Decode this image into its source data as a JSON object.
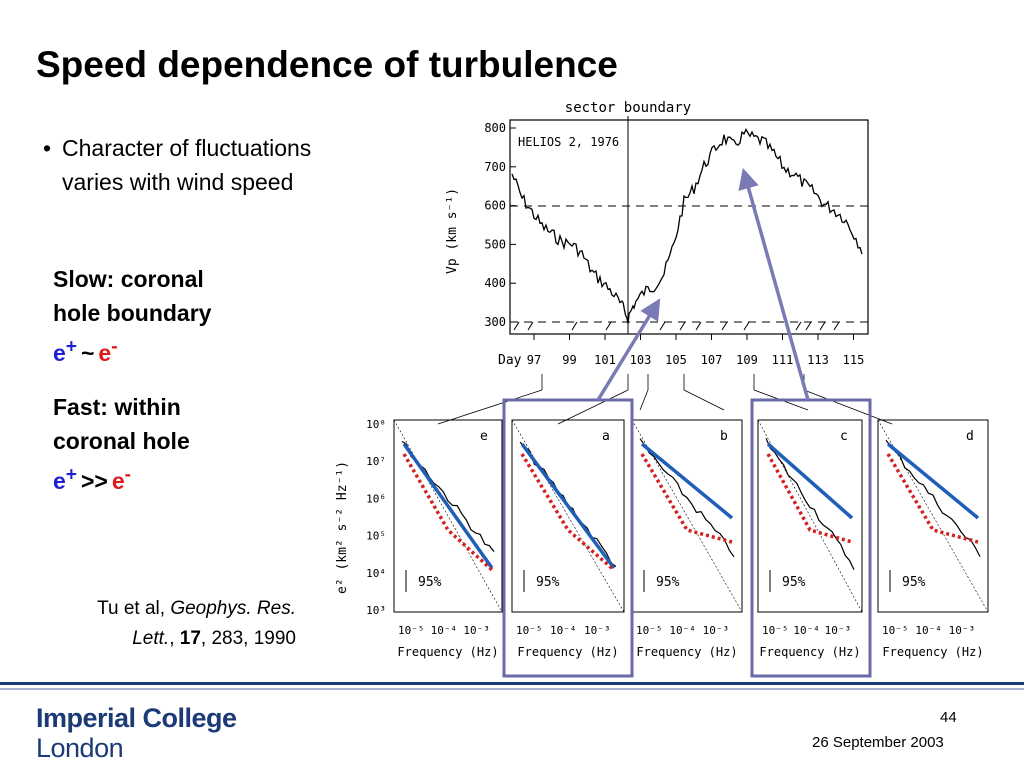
{
  "title": "Speed dependence of turbulence",
  "bullet": {
    "symbol": "•",
    "text": "Character of fluctuations varies with wind speed"
  },
  "slow": {
    "line1": "Slow: coronal",
    "line2": "hole boundary",
    "eplus": "e",
    "eplus_sup": "+",
    "relation": "~",
    "eminus": "e",
    "eminus_sup": "-"
  },
  "fast": {
    "line1": "Fast: within",
    "line2": "coronal hole",
    "eplus": "e",
    "eplus_sup": "+",
    "relation": ">>",
    "eminus": "e",
    "eminus_sup": "-"
  },
  "citation": {
    "author": "Tu et al, ",
    "journal_line1": "Geophys. Res.",
    "journal_line2": "Lett.",
    "sep1": ", ",
    "volume": "17",
    "rest": ", 283, 1990"
  },
  "figure": {
    "top_label": "sector boundary",
    "panel_label": "HELIOS 2, 1976",
    "y_axis_label": "Vp (km s⁻¹)",
    "y_ticks": [
      "800",
      "700",
      "600",
      "500",
      "400",
      "300"
    ],
    "day_label": "Day",
    "x_ticks": [
      "97",
      "99",
      "101",
      "103",
      "105",
      "107",
      "109",
      "111",
      "113",
      "115"
    ],
    "spectra_y_label": "e² (km² s⁻² Hz⁻¹)",
    "spectra_y_ticks": [
      "10⁸",
      "10⁷",
      "10⁶",
      "10⁵",
      "10⁴",
      "10³"
    ],
    "spectra_panels": [
      "e",
      "a",
      "b",
      "c",
      "d"
    ],
    "confidence": "95%",
    "freq_ticks": [
      "10⁻⁵",
      "10⁻⁴",
      "10⁻³"
    ],
    "freq_label": "Frequency (Hz)",
    "colors": {
      "fit_blue": "#1f5fb8",
      "dotted_red": "#d42020",
      "highlight_box": "#6a6aa8",
      "arrow": "#7a7ab5"
    }
  },
  "footer": {
    "logo_line1": "Imperial College",
    "logo_line2": "London",
    "page": "44",
    "date": "26 September 2003"
  }
}
